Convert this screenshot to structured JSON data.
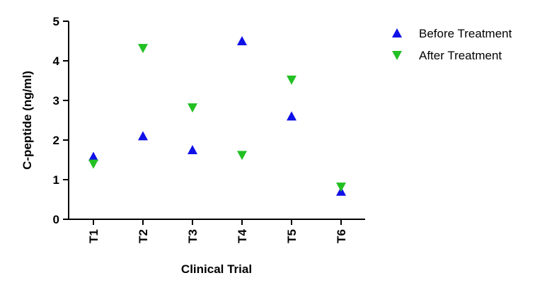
{
  "chart_data": {
    "type": "scatter",
    "categories": [
      "T1",
      "T2",
      "T3",
      "T4",
      "T5",
      "T6"
    ],
    "series": [
      {
        "name": "Before Treatment",
        "marker": "triangle-up",
        "color": "#1010e8",
        "values": [
          1.58,
          2.1,
          1.75,
          4.5,
          2.6,
          0.7
        ]
      },
      {
        "name": "After Treatment",
        "marker": "triangle-down",
        "color": "#22c022",
        "values": [
          1.4,
          4.32,
          2.82,
          1.62,
          3.52,
          0.82
        ]
      }
    ],
    "xlabel": "Clinical Trial",
    "ylabel": "C-peptide (ng/ml)",
    "ylim": [
      0,
      5
    ],
    "yticks": [
      "0",
      "1",
      "2",
      "3",
      "4",
      "5"
    ],
    "grid": false,
    "legend_position": "top-right"
  }
}
